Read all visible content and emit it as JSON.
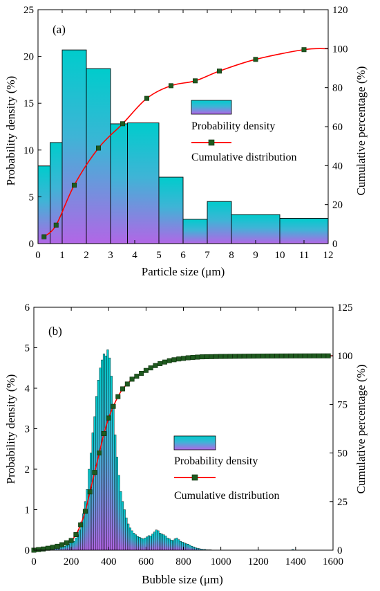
{
  "colors": {
    "bar_top": "#00cccc",
    "bar_bottom": "#b266e6",
    "bar_edge": "#000000",
    "curve": "#ff0000",
    "marker": "#1f5a1f"
  },
  "chart_data": [
    {
      "type": "bar",
      "panel_label": "(a)",
      "xlabel": "Particle size (μm)",
      "ylabel_left": "Probability density (%)",
      "ylabel_right": "Cumulative percentage (%)",
      "xlim": [
        0,
        12
      ],
      "ylim_left": [
        0,
        25
      ],
      "ylim_right": [
        0,
        120
      ],
      "xticks": [
        0,
        1,
        2,
        3,
        4,
        5,
        6,
        7,
        8,
        9,
        10,
        11,
        12
      ],
      "yticks_left": [
        0,
        5,
        10,
        15,
        20,
        25
      ],
      "yticks_right": [
        0,
        20,
        40,
        60,
        80,
        100,
        120
      ],
      "legend": {
        "placement": "center-right",
        "entries": [
          "Probability density",
          "Cumulative distribution"
        ]
      },
      "series": [
        {
          "name": "Probability density",
          "kind": "histogram",
          "axis": "left",
          "bins": [
            [
              0,
              0.5,
              8.3
            ],
            [
              0.5,
              1,
              10.8
            ],
            [
              1,
              2,
              20.7
            ],
            [
              2,
              3,
              18.7
            ],
            [
              3,
              3.7,
              12.8
            ],
            [
              3.7,
              5,
              12.9
            ],
            [
              5,
              6,
              7.1
            ],
            [
              6,
              7,
              2.6
            ],
            [
              7,
              8,
              4.5
            ],
            [
              8,
              10,
              3.1
            ],
            [
              10,
              12,
              2.7
            ]
          ]
        },
        {
          "name": "Cumulative distribution",
          "kind": "line",
          "axis": "right",
          "x": [
            0.25,
            0.75,
            1.5,
            2.5,
            3.5,
            4.5,
            5.5,
            6.5,
            7.5,
            9,
            11,
            12
          ],
          "y": [
            3.5,
            9.5,
            30,
            49,
            61.5,
            74.5,
            81,
            83.5,
            88.5,
            94.5,
            99.5,
            100
          ]
        }
      ]
    },
    {
      "type": "bar",
      "panel_label": "(b)",
      "xlabel": "Bubble size (μm)",
      "ylabel_left": "Probability density (%)",
      "ylabel_right": "Cumulative percentage (%)",
      "xlim": [
        0,
        1600
      ],
      "ylim_left": [
        0,
        6
      ],
      "ylim_right": [
        0,
        125
      ],
      "xticks": [
        0,
        200,
        400,
        600,
        800,
        1000,
        1200,
        1400,
        1600
      ],
      "yticks_left": [
        0,
        1,
        2,
        3,
        4,
        5,
        6
      ],
      "yticks_right": [
        0,
        25,
        50,
        75,
        100,
        125
      ],
      "legend": {
        "placement": "center-right",
        "entries": [
          "Probability density",
          "Cumulative distribution"
        ]
      },
      "series": [
        {
          "name": "Probability density",
          "kind": "histogram",
          "axis": "left",
          "bin_start": 0,
          "bin_width": 10,
          "values": [
            0,
            0,
            0,
            0,
            0.01,
            0.02,
            0.03,
            0.04,
            0.06,
            0.08,
            0.09,
            0.07,
            0.05,
            0.06,
            0.07,
            0.08,
            0.1,
            0.12,
            0.15,
            0.18,
            0.2,
            0.22,
            0.3,
            0.38,
            0.5,
            0.7,
            0.9,
            1.2,
            1.5,
            2.0,
            2.4,
            2.9,
            3.3,
            3.8,
            4.2,
            4.5,
            4.7,
            4.85,
            4.8,
            4.95,
            4.75,
            4.3,
            3.6,
            2.85,
            2.3,
            1.85,
            1.45,
            1.2,
            1.0,
            0.8,
            0.65,
            0.55,
            0.48,
            0.42,
            0.38,
            0.34,
            0.32,
            0.3,
            0.28,
            0.3,
            0.33,
            0.36,
            0.35,
            0.4,
            0.45,
            0.5,
            0.48,
            0.42,
            0.4,
            0.38,
            0.35,
            0.3,
            0.28,
            0.25,
            0.24,
            0.28,
            0.3,
            0.26,
            0.22,
            0.2,
            0.18,
            0.16,
            0.15,
            0.12,
            0.1,
            0.08,
            0.06,
            0.05,
            0.04,
            0.03,
            0.02,
            0.02,
            0.01,
            0.01,
            0.01,
            0,
            0,
            0,
            0,
            0,
            0,
            0,
            0,
            0,
            0,
            0,
            0,
            0,
            0,
            0,
            0,
            0,
            0,
            0,
            0,
            0,
            0,
            0,
            0,
            0,
            0,
            0,
            0,
            0,
            0,
            0,
            0,
            0,
            0,
            0,
            0,
            0,
            0,
            0,
            0,
            0,
            0,
            0,
            0.02,
            0,
            0,
            0,
            0,
            0,
            0,
            0,
            0,
            0,
            0,
            0,
            0,
            0,
            0,
            0,
            0,
            0,
            0,
            0,
            0,
            0
          ]
        },
        {
          "name": "Cumulative distribution",
          "kind": "line",
          "axis": "right",
          "x": [
            0,
            25,
            50,
            75,
            100,
            125,
            150,
            175,
            200,
            225,
            250,
            275,
            300,
            325,
            350,
            375,
            400,
            425,
            450,
            475,
            500,
            525,
            550,
            575,
            600,
            625,
            650,
            675,
            700,
            725,
            750,
            775,
            800,
            825,
            850,
            875,
            900,
            925,
            950,
            975,
            1000,
            1025,
            1050,
            1075,
            1100,
            1125,
            1150,
            1175,
            1200,
            1225,
            1250,
            1275,
            1300,
            1325,
            1350,
            1375,
            1400,
            1425,
            1450,
            1475,
            1500,
            1525,
            1550,
            1575,
            1600
          ],
          "y": [
            0,
            0.3,
            0.6,
            1,
            1.5,
            2,
            2.8,
            3.8,
            5,
            8,
            13,
            20,
            30,
            40,
            50,
            60,
            68,
            74,
            79,
            83,
            85.5,
            88,
            89.5,
            91,
            92.5,
            93.8,
            95,
            96,
            96.8,
            97.5,
            98,
            98.4,
            98.7,
            99,
            99.2,
            99.35,
            99.5,
            99.55,
            99.6,
            99.65,
            99.7,
            99.72,
            99.75,
            99.78,
            99.8,
            99.82,
            99.84,
            99.86,
            99.88,
            99.9,
            99.91,
            99.92,
            99.93,
            99.94,
            99.95,
            99.96,
            99.97,
            99.97,
            99.98,
            99.98,
            99.99,
            99.99,
            100,
            100,
            100
          ]
        }
      ]
    }
  ]
}
